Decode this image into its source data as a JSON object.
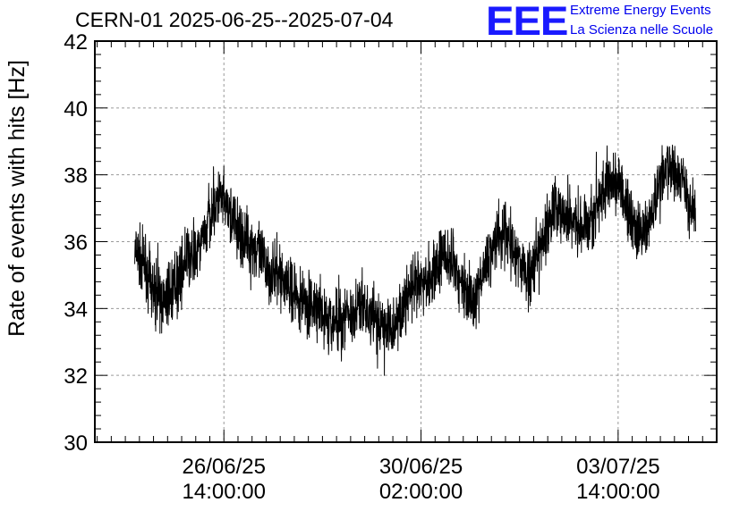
{
  "header": {
    "title": "CERN-01 2025-06-25--2025-07-04",
    "logo_text": "EEE",
    "logo_line1": "Extreme Energy Events",
    "logo_line2": "La Scienza nelle Scuole"
  },
  "colors": {
    "series": "#000000",
    "logo": "#1a1aff",
    "grid": "#9a9a9a"
  },
  "chart_data": {
    "type": "line",
    "title": "CERN-01 2025-06-25--2025-07-04",
    "xlabel": "",
    "ylabel": "Rate of events with hits [Hz]",
    "ylim": [
      30,
      42
    ],
    "yticks": [
      30,
      32,
      34,
      36,
      38,
      40,
      42
    ],
    "xlim": [
      "2025-06-24T07:00:00",
      "2025-07-05T08:00:00"
    ],
    "xticks": [
      {
        "date": "26/06/25",
        "time": "14:00:00",
        "t": "2025-06-26T14:00:00"
      },
      {
        "date": "30/06/25",
        "time": "02:00:00",
        "t": "2025-06-30T02:00:00"
      },
      {
        "date": "03/07/25",
        "time": "14:00:00",
        "t": "2025-07-03T14:00:00"
      }
    ],
    "grid": true,
    "series": [
      {
        "x": [
          "2025-06-25T00:00:00",
          "2025-06-25T12:00:00",
          "2025-06-26T00:00:00",
          "2025-06-26T12:00:00",
          "2025-06-27T00:00:00",
          "2025-06-27T12:00:00",
          "2025-06-28T00:00:00",
          "2025-06-28T12:00:00",
          "2025-06-29T00:00:00",
          "2025-06-29T12:00:00",
          "2025-06-30T00:00:00",
          "2025-06-30T12:00:00",
          "2025-07-01T00:00:00",
          "2025-07-01T12:00:00",
          "2025-07-02T00:00:00",
          "2025-07-02T12:00:00",
          "2025-07-03T00:00:00",
          "2025-07-03T12:00:00",
          "2025-07-04T00:00:00",
          "2025-07-04T12:00:00",
          "2025-07-04T23:00:00"
        ],
        "y": [
          35.6,
          34.2,
          35.5,
          37.2,
          36.0,
          35.0,
          34.2,
          33.6,
          34.0,
          33.4,
          34.6,
          35.5,
          34.4,
          36.3,
          35.0,
          37.0,
          36.5,
          37.8,
          36.2,
          38.3,
          37.0
        ],
        "band": 1.4
      }
    ]
  }
}
